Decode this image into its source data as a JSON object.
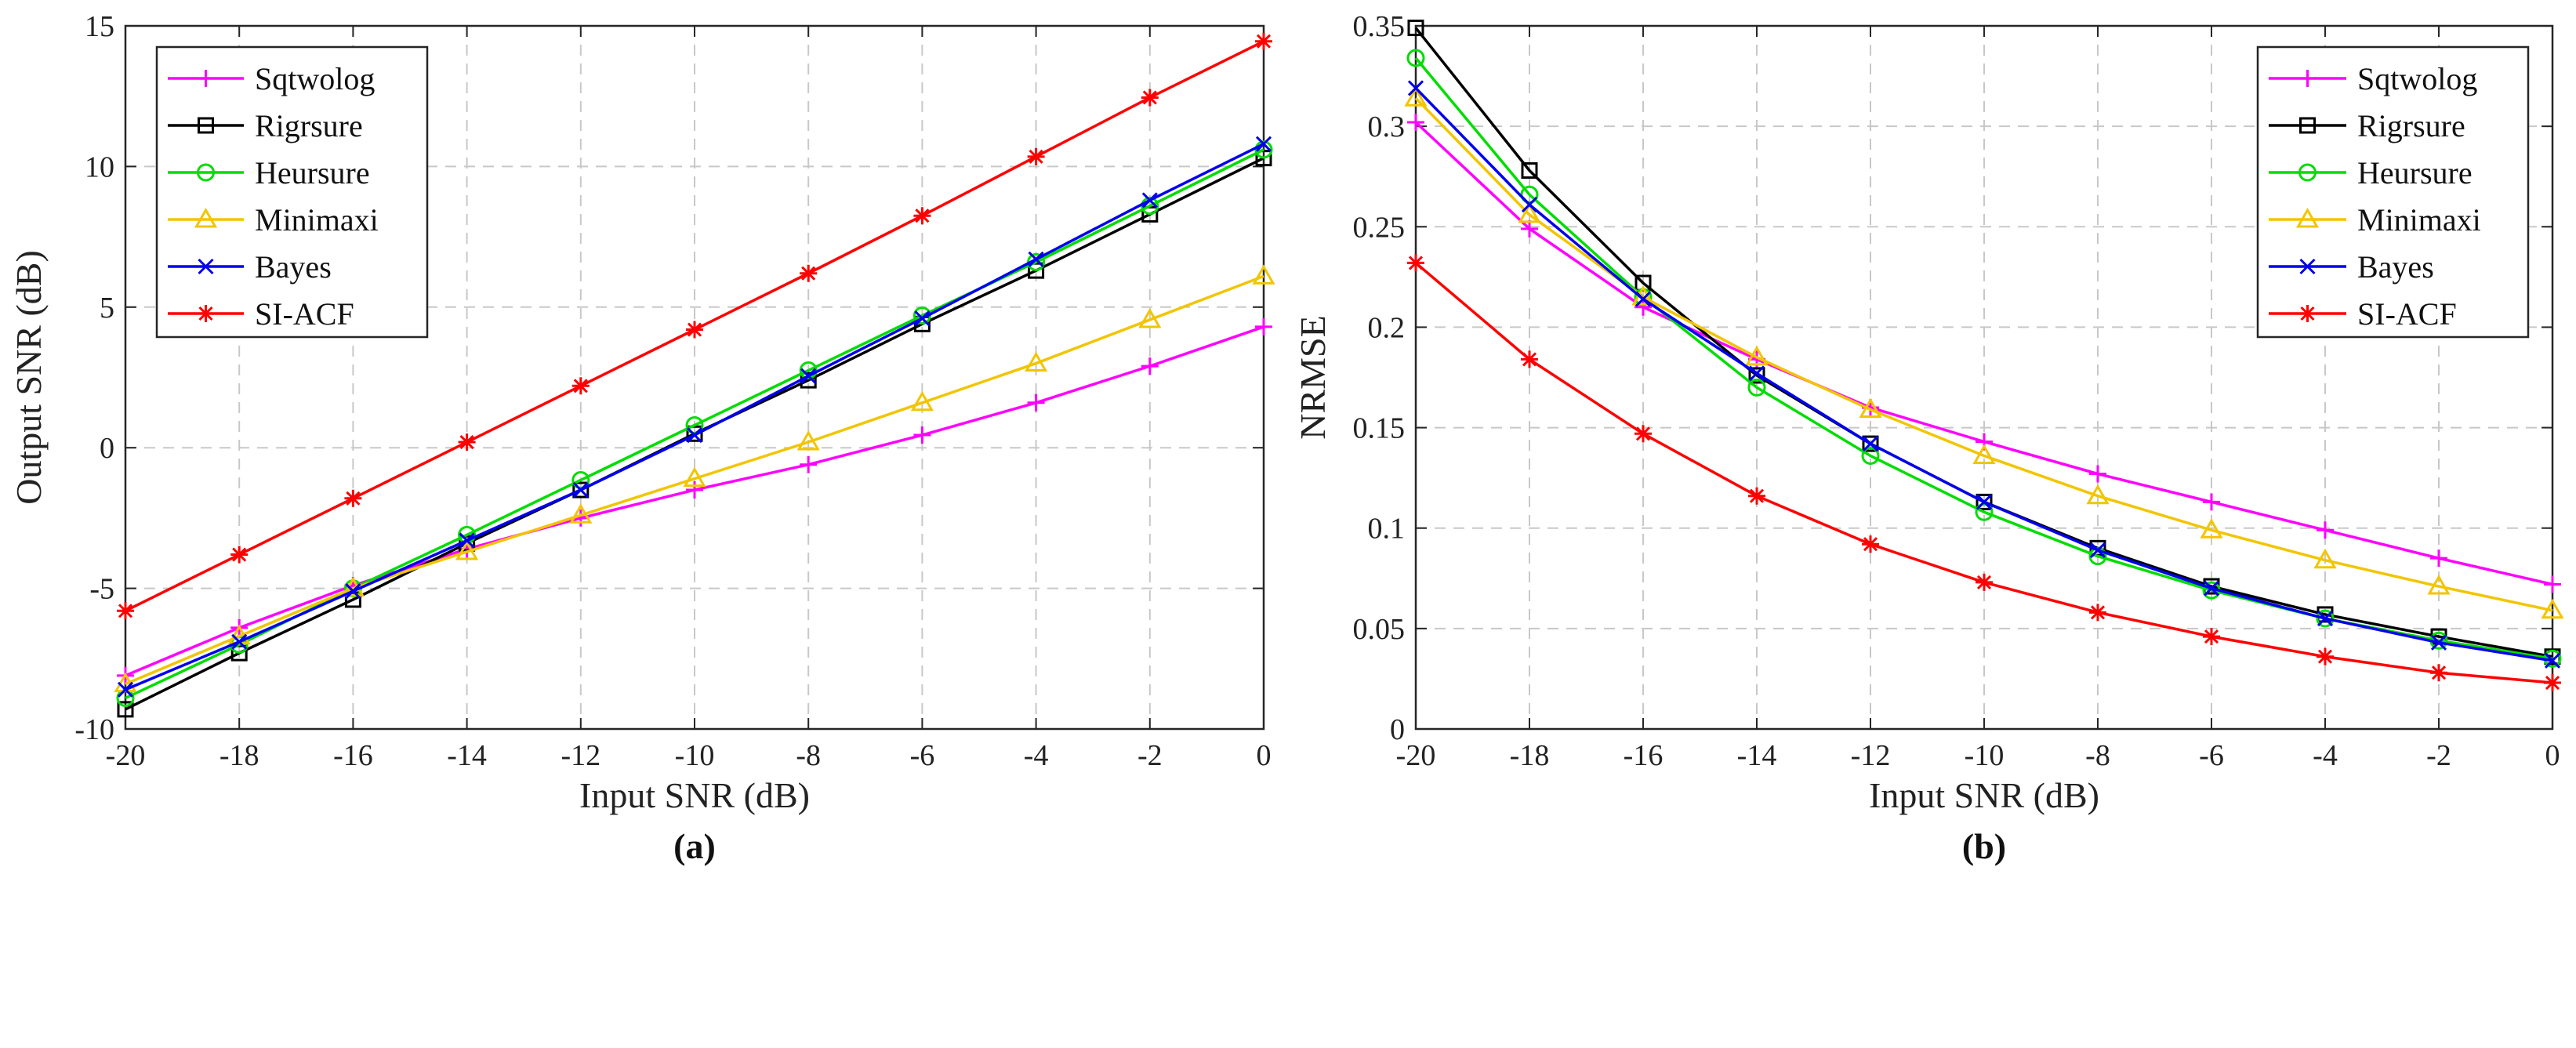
{
  "chart_data": [
    {
      "type": "line",
      "panel_label": "(a)",
      "xlabel": "Input SNR (dB)",
      "ylabel": "Output SNR (dB)",
      "xlim": [
        -20,
        0
      ],
      "ylim": [
        -10,
        15
      ],
      "x": [
        -20,
        -18,
        -16,
        -14,
        -12,
        -10,
        -8,
        -6,
        -4,
        -2,
        0
      ],
      "xticks": [
        -20,
        -18,
        -16,
        -14,
        -12,
        -10,
        -8,
        -6,
        -4,
        -2,
        0
      ],
      "xtick_labels": [
        "-20",
        "-18",
        "-16",
        "-14",
        "-12",
        "-10",
        "-8",
        "-6",
        "-4",
        "-2",
        "0"
      ],
      "yticks": [
        -10,
        -5,
        0,
        5,
        10,
        15
      ],
      "ytick_labels": [
        "-10",
        "-5",
        "0",
        "5",
        "10",
        "15"
      ],
      "grid": true,
      "legend_position": "top-left",
      "series": [
        {
          "name": "Sqtwolog",
          "color": "#ff00ff",
          "marker": "plus",
          "values": [
            -8.1,
            -6.4,
            -4.9,
            -3.6,
            -2.5,
            -1.5,
            -0.6,
            0.45,
            1.6,
            2.9,
            4.3
          ]
        },
        {
          "name": "Rigrsure",
          "color": "#000000",
          "marker": "square",
          "values": [
            -9.3,
            -7.3,
            -5.4,
            -3.4,
            -1.5,
            0.5,
            2.4,
            4.4,
            6.3,
            8.3,
            10.3
          ]
        },
        {
          "name": "Heursure",
          "color": "#00dd00",
          "marker": "circle",
          "values": [
            -8.9,
            -7.0,
            -5.0,
            -3.1,
            -1.15,
            0.8,
            2.75,
            4.7,
            6.6,
            8.6,
            10.6
          ]
        },
        {
          "name": "Minimaxi",
          "color": "#f2c500",
          "marker": "triangle",
          "values": [
            -8.4,
            -6.7,
            -5.0,
            -3.7,
            -2.4,
            -1.1,
            0.2,
            1.6,
            3.0,
            4.55,
            6.1
          ]
        },
        {
          "name": "Bayes",
          "color": "#0000ee",
          "marker": "x",
          "values": [
            -8.6,
            -6.9,
            -5.1,
            -3.3,
            -1.5,
            0.45,
            2.55,
            4.6,
            6.7,
            8.8,
            10.8
          ]
        },
        {
          "name": "SI-ACF",
          "color": "#ff0000",
          "marker": "star",
          "values": [
            -5.8,
            -3.8,
            -1.8,
            0.2,
            2.2,
            4.2,
            6.2,
            8.25,
            10.35,
            12.45,
            14.45
          ]
        }
      ]
    },
    {
      "type": "line",
      "panel_label": "(b)",
      "xlabel": "Input SNR (dB)",
      "ylabel": "NRMSE",
      "xlim": [
        -20,
        0
      ],
      "ylim": [
        0,
        0.35
      ],
      "x": [
        -20,
        -18,
        -16,
        -14,
        -12,
        -10,
        -8,
        -6,
        -4,
        -2,
        0
      ],
      "xticks": [
        -20,
        -18,
        -16,
        -14,
        -12,
        -10,
        -8,
        -6,
        -4,
        -2,
        0
      ],
      "xtick_labels": [
        "-20",
        "-18",
        "-16",
        "-14",
        "-12",
        "-10",
        "-8",
        "-6",
        "-4",
        "-2",
        "0"
      ],
      "yticks": [
        0,
        0.05,
        0.1,
        0.15,
        0.2,
        0.25,
        0.3,
        0.35
      ],
      "ytick_labels": [
        "0",
        "0.05",
        "0.1",
        "0.15",
        "0.2",
        "0.25",
        "0.3",
        "0.35"
      ],
      "grid": true,
      "legend_position": "top-right",
      "series": [
        {
          "name": "Sqtwolog",
          "color": "#ff00ff",
          "marker": "plus",
          "values": [
            0.302,
            0.249,
            0.21,
            0.184,
            0.16,
            0.143,
            0.127,
            0.113,
            0.099,
            0.085,
            0.072
          ]
        },
        {
          "name": "Rigrsure",
          "color": "#000000",
          "marker": "square",
          "values": [
            0.349,
            0.278,
            0.222,
            0.176,
            0.142,
            0.113,
            0.09,
            0.071,
            0.057,
            0.046,
            0.036
          ]
        },
        {
          "name": "Heursure",
          "color": "#00dd00",
          "marker": "circle",
          "values": [
            0.334,
            0.266,
            0.215,
            0.17,
            0.136,
            0.108,
            0.086,
            0.069,
            0.055,
            0.044,
            0.035
          ]
        },
        {
          "name": "Minimaxi",
          "color": "#f2c500",
          "marker": "triangle",
          "values": [
            0.314,
            0.256,
            0.215,
            0.185,
            0.159,
            0.136,
            0.116,
            0.099,
            0.084,
            0.071,
            0.059
          ]
        },
        {
          "name": "Bayes",
          "color": "#0000ee",
          "marker": "x",
          "values": [
            0.319,
            0.261,
            0.214,
            0.177,
            0.142,
            0.113,
            0.089,
            0.07,
            0.055,
            0.043,
            0.034
          ]
        },
        {
          "name": "SI-ACF",
          "color": "#ff0000",
          "marker": "star",
          "values": [
            0.232,
            0.184,
            0.147,
            0.116,
            0.092,
            0.073,
            0.058,
            0.046,
            0.036,
            0.028,
            0.023
          ]
        }
      ]
    }
  ]
}
